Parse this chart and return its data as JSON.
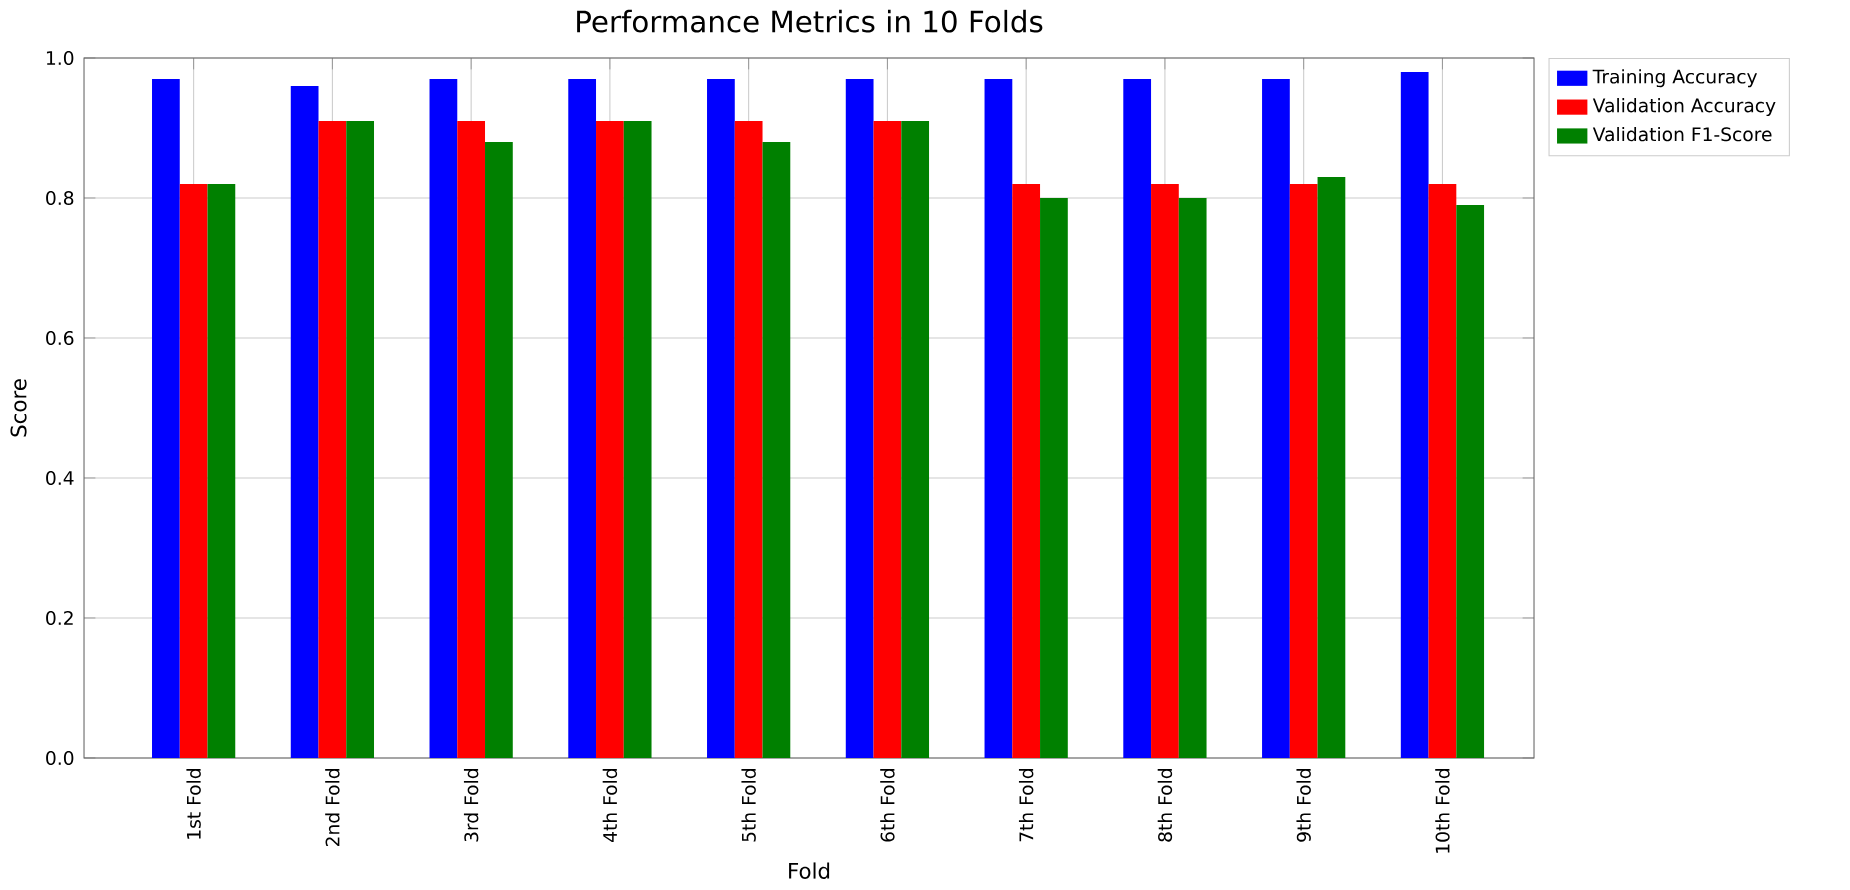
{
  "chart_data": {
    "type": "bar",
    "title": "Performance Metrics in 10 Folds",
    "xlabel": "Fold",
    "ylabel": "Score",
    "categories": [
      "1st Fold",
      "2nd Fold",
      "3rd Fold",
      "4th Fold",
      "5th Fold",
      "6th Fold",
      "7th Fold",
      "8th Fold",
      "9th Fold",
      "10th Fold"
    ],
    "series": [
      {
        "name": "Training Accuracy",
        "color": "#0000ff",
        "values": [
          0.97,
          0.96,
          0.97,
          0.97,
          0.97,
          0.97,
          0.97,
          0.97,
          0.97,
          0.98
        ]
      },
      {
        "name": "Validation Accuracy",
        "color": "#ff0000",
        "values": [
          0.82,
          0.91,
          0.91,
          0.91,
          0.91,
          0.91,
          0.82,
          0.82,
          0.82,
          0.82
        ]
      },
      {
        "name": "Validation F1-Score",
        "color": "#008000",
        "values": [
          0.82,
          0.91,
          0.88,
          0.91,
          0.88,
          0.91,
          0.8,
          0.8,
          0.83,
          0.79
        ]
      }
    ],
    "ylim": [
      0.0,
      1.0
    ],
    "yticks": [
      {
        "value": 0.0,
        "label": "0.0"
      },
      {
        "value": 0.2,
        "label": "0.2"
      },
      {
        "value": 0.4,
        "label": "0.4"
      },
      {
        "value": 0.6,
        "label": "0.6"
      },
      {
        "value": 0.8,
        "label": "0.8"
      },
      {
        "value": 1.0,
        "label": "1.0"
      }
    ],
    "grid": true,
    "legend": "right"
  }
}
